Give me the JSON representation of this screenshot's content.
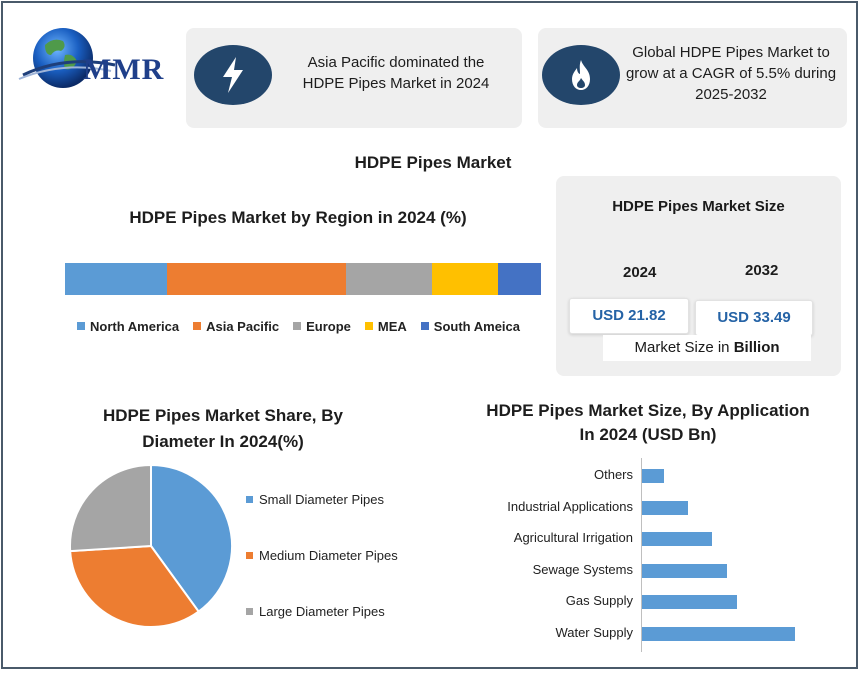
{
  "header": {
    "logo_text": "MMR",
    "card1": {
      "icon": "lightning-icon",
      "line1": "Asia Pacific dominated the",
      "line2": "HDPE Pipes Market in 2024"
    },
    "card2": {
      "icon": "flame-icon",
      "line1": "Global HDPE Pipes Market to",
      "line2": "grow at a CAGR of 5.5% during",
      "line3": "2025-2032"
    }
  },
  "main_title": "HDPE Pipes Market",
  "market_size": {
    "title": "HDPE Pipes Market Size",
    "year1": "2024",
    "year2": "2032",
    "value1": "USD 21.82",
    "value2": "USD 33.49",
    "footer_prefix": "Market Size in ",
    "footer_bold": "Billion"
  },
  "colors": {
    "north_america": "#5b9bd5",
    "asia_pacific": "#ed7d31",
    "europe": "#a5a5a5",
    "mea": "#ffc000",
    "south_america": "#4472c4",
    "dark_blue": "#23466b"
  },
  "chart_data": [
    {
      "type": "bar",
      "orientation": "stacked-horizontal",
      "title": "HDPE Pipes Market by Region in 2024 (%)",
      "series": [
        {
          "name": "North America",
          "value": 21.5,
          "color": "#5b9bd5"
        },
        {
          "name": "Asia Pacific",
          "value": 37.5,
          "color": "#ed7d31"
        },
        {
          "name": "Europe",
          "value": 18,
          "color": "#a5a5a5"
        },
        {
          "name": "MEA",
          "value": 14,
          "color": "#ffc000"
        },
        {
          "name": "South Ameica",
          "value": 9,
          "color": "#4472c4"
        }
      ],
      "legend": "bottom"
    },
    {
      "type": "pie",
      "title_line1": "HDPE Pipes Market Share, By",
      "title_line2": "Diameter In 2024(%)",
      "slices": [
        {
          "name": "Small Diameter Pipes",
          "value": 40,
          "color": "#5b9bd5"
        },
        {
          "name": "Medium Diameter Pipes",
          "value": 34,
          "color": "#ed7d31"
        },
        {
          "name": "Large Diameter Pipes",
          "value": 26,
          "color": "#a5a5a5"
        }
      ],
      "legend": "right"
    },
    {
      "type": "bar",
      "orientation": "horizontal",
      "title_line1": "HDPE Pipes Market Size, By Application",
      "title_line2": "In 2024 (USD Bn)",
      "categories": [
        "Water Supply",
        "Gas Supply",
        "Sewage Systems",
        "Agricultural Irrigation",
        "Industrial Applications",
        "Others"
      ],
      "values": [
        6.3,
        3.9,
        3.5,
        2.9,
        1.9,
        0.9
      ],
      "xlim": [
        0,
        6.5
      ],
      "color": "#5b9bd5",
      "grid": false
    }
  ]
}
